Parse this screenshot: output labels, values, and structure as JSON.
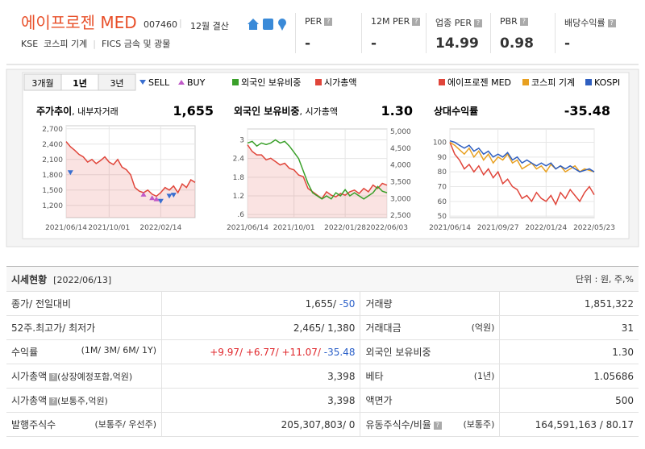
{
  "header": {
    "name": "에이프로젠 MED",
    "code": "007460",
    "fiscal": "12월 결산",
    "market": "KSE",
    "sector": "코스피 기계",
    "fics": "FICS 금속 및 광물"
  },
  "metrics": [
    {
      "label": "PER",
      "value": "-"
    },
    {
      "label": "12M PER",
      "value": "-"
    },
    {
      "label": "업종 PER",
      "value": "14.99"
    },
    {
      "label": "PBR",
      "value": "0.98"
    },
    {
      "label": "배당수익률",
      "value": "-"
    }
  ],
  "tabs": [
    "3개월",
    "1년",
    "3년"
  ],
  "charts": [
    {
      "title": "주가추이",
      "subtitle": ", 내부자거래",
      "value": "1,655",
      "ylim": [
        960,
        2760
      ],
      "yticks": [
        {
          "value": 2700,
          "label": "2,700"
        },
        {
          "value": 2400,
          "label": "2,400"
        },
        {
          "value": 2100,
          "label": "2,100"
        },
        {
          "value": 1800,
          "label": "1,800"
        },
        {
          "value": 1500,
          "label": "1,500"
        },
        {
          "value": 1200,
          "label": "1,200"
        }
      ],
      "xlim": [
        0,
        30
      ],
      "xticks": [
        {
          "value": 0,
          "label": "2021/06/14"
        },
        {
          "value": 10,
          "label": "2021/10/01"
        },
        {
          "value": 22,
          "label": "2022/02/14"
        }
      ],
      "series": [
        {
          "type": "area",
          "color": "#e0453a",
          "values": [
            2450,
            2350,
            2280,
            2200,
            2150,
            2050,
            2100,
            2020,
            2080,
            2150,
            2050,
            2000,
            2100,
            1950,
            1900,
            1800,
            1550,
            1480,
            1450,
            1500,
            1420,
            1380,
            1450,
            1550,
            1500,
            1580,
            1450,
            1620,
            1550,
            1700,
            1650
          ]
        }
      ],
      "markers": [
        {
          "name": "SELL",
          "shape": "down",
          "color": "#3a6fd0",
          "x": [
            1,
            22,
            24,
            25
          ],
          "values": [
            1840,
            1280,
            1380,
            1400
          ]
        },
        {
          "name": "BUY",
          "shape": "up",
          "color": "#c05ac8",
          "x": [
            18,
            20,
            21
          ],
          "values": [
            1420,
            1350,
            1330
          ]
        }
      ]
    },
    {
      "title": "외국인 보유비중",
      "subtitle": ", 시가총액",
      "value": "1.30",
      "ylim": [
        0.5,
        3.35
      ],
      "yticks": [
        3,
        2.4,
        1.8,
        1.2,
        {
          "value": 0.6,
          "label": ".6"
        }
      ],
      "y2lim": [
        2430,
        5070
      ],
      "y2ticks": [
        {
          "value": 5000,
          "label": "5,000"
        },
        {
          "value": 4500,
          "label": "4,500"
        },
        {
          "value": 4000,
          "label": "4,000"
        },
        {
          "value": 3500,
          "label": "3,500"
        },
        {
          "value": 3000,
          "label": "3,000"
        },
        {
          "value": 2500,
          "label": "2,500"
        }
      ],
      "xlim": [
        0,
        30
      ],
      "xticks": [
        {
          "value": 0,
          "label": "2021/06/14"
        },
        {
          "value": 10,
          "label": "2021/10/01"
        },
        {
          "value": 21,
          "label": "2022/01/28"
        },
        {
          "value": 30,
          "label": "2022/06/03"
        }
      ],
      "series": [
        {
          "name": "시가총액",
          "type": "area",
          "axis": "y2",
          "color": "#e0453a",
          "values": [
            4600,
            4400,
            4300,
            4300,
            4150,
            4200,
            4100,
            4000,
            4050,
            3900,
            3850,
            3700,
            3650,
            3300,
            3200,
            3100,
            3000,
            3200,
            3100,
            3050,
            3150,
            3100,
            3200,
            3250,
            3150,
            3300,
            3200,
            3400,
            3300,
            3450,
            3398
          ]
        },
        {
          "name": "외국인 보유비중",
          "type": "line",
          "color": "#3aa02a",
          "values": [
            2.9,
            2.95,
            2.8,
            2.9,
            2.85,
            2.9,
            3.0,
            2.9,
            2.95,
            2.8,
            2.6,
            2.4,
            2.0,
            1.6,
            1.3,
            1.2,
            1.1,
            1.2,
            1.1,
            1.3,
            1.2,
            1.4,
            1.2,
            1.3,
            1.2,
            1.1,
            1.2,
            1.3,
            1.5,
            1.35,
            1.3
          ]
        }
      ]
    },
    {
      "title": "상대수익률",
      "value": "-35.48",
      "ylim": [
        49,
        109
      ],
      "yticks": [
        100,
        90,
        80,
        70,
        60,
        50
      ],
      "xlim": [
        0,
        30
      ],
      "xticks": [
        {
          "value": 0,
          "label": "2021/06/14"
        },
        {
          "value": 10,
          "label": "2021/09/27"
        },
        {
          "value": 20,
          "label": "2022/01/24"
        },
        {
          "value": 30,
          "label": "2022/05/23"
        }
      ],
      "series": [
        {
          "name": "에이프로젠 MED",
          "type": "line",
          "color": "#e0453a",
          "values": [
            100,
            92,
            88,
            82,
            85,
            80,
            84,
            78,
            82,
            76,
            80,
            72,
            75,
            70,
            68,
            62,
            64,
            60,
            66,
            62,
            60,
            64,
            58,
            66,
            62,
            68,
            64,
            60,
            66,
            70,
            64.5
          ]
        },
        {
          "name": "코스피 기계",
          "type": "line",
          "color": "#e8a020",
          "values": [
            100,
            98,
            95,
            92,
            96,
            90,
            94,
            88,
            92,
            86,
            90,
            88,
            92,
            86,
            88,
            82,
            84,
            86,
            82,
            84,
            80,
            85,
            82,
            84,
            80,
            82,
            84,
            80,
            82,
            81,
            80
          ]
        },
        {
          "name": "KOSPI",
          "type": "line",
          "color": "#2f5fc0",
          "values": [
            101,
            100,
            98,
            96,
            98,
            94,
            96,
            92,
            94,
            90,
            92,
            90,
            93,
            88,
            90,
            86,
            88,
            86,
            84,
            86,
            84,
            86,
            82,
            84,
            82,
            84,
            82,
            80,
            81,
            82,
            80
          ]
        }
      ]
    }
  ],
  "table": {
    "title": "시세현황",
    "date": "[2022/06/13]",
    "unit": "단위 : 원, 주,%",
    "rows": [
      [
        {
          "label": "종가/ 전일대비",
          "value": [
            "1,655/ ",
            "-50"
          ]
        },
        {
          "label": "거래량",
          "value": [
            "1,851,322"
          ]
        }
      ],
      [
        {
          "label": "52주.최고가/ 최저가",
          "value": [
            "2,465/ 1,380"
          ]
        },
        {
          "label": "거래대금",
          "sub": "(억원)",
          "value": [
            "31"
          ]
        }
      ],
      [
        {
          "label": "수익률",
          "sub": "(1M/ 3M/ 6M/ 1Y)",
          "value": [
            "+9.97/ ",
            "+6.77/ ",
            "+11.07/ ",
            "-35.48"
          ]
        },
        {
          "label": "외국인 보유비중",
          "value": [
            "1.30"
          ]
        }
      ],
      [
        {
          "label": "시가총액",
          "help": true,
          "sub": "(상장예정포함,억원)",
          "value": [
            "3,398"
          ]
        },
        {
          "label": "베타",
          "sub": "(1년)",
          "value": [
            "1.05686"
          ]
        }
      ],
      [
        {
          "label": "시가총액",
          "help": true,
          "sub": "(보통주,억원)",
          "value": [
            "3,398"
          ]
        },
        {
          "label": "액면가",
          "value": [
            "500"
          ]
        }
      ],
      [
        {
          "label": "발행주식수",
          "sub": "(보통주/ 우선주)",
          "value": [
            "205,307,803/ 0"
          ]
        },
        {
          "label": "유동주식수/비율",
          "help": true,
          "sub": "(보통주)",
          "value": [
            "164,591,163 / 80.17"
          ]
        }
      ]
    ]
  }
}
